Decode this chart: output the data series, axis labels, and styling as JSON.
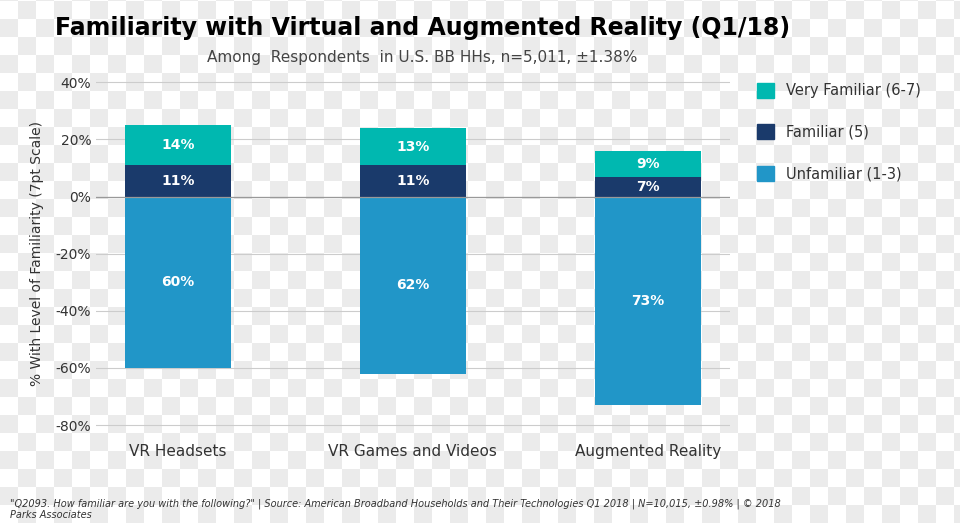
{
  "title": "Familiarity with Virtual and Augmented Reality (Q1/18)",
  "subtitle": "Among  Respondents  in U.S. BB HHs, n=5,011, ±1.38%",
  "categories": [
    "VR Headsets",
    "VR Games and Videos",
    "Augmented Reality"
  ],
  "series": [
    {
      "name": "Unfamiliar (1-3)",
      "values": [
        -60,
        -62,
        -73
      ],
      "color": "#2196C8"
    },
    {
      "name": "Familiar (5)",
      "values": [
        11,
        11,
        7
      ],
      "color": "#1A3A6B"
    },
    {
      "name": "Very Familiar (6-7)",
      "values": [
        14,
        13,
        9
      ],
      "color": "#00B8B0"
    }
  ],
  "ylabel": "% With Level of Familiarity (7pt Scale)",
  "ylim": [
    -85,
    45
  ],
  "yticks": [
    -80,
    -60,
    -40,
    -20,
    0,
    20,
    40
  ],
  "ytick_labels": [
    "-80%",
    "-60%",
    "-40%",
    "-20%",
    "0%",
    "20%",
    "40%"
  ],
  "bar_width": 0.45,
  "footnote": "\"Q2093. How familiar are you with the following?\" | Source: American Broadband Households and Their Technologies Q1 2018 | N=10,015, ±0.98% | © 2018\nParks Associates",
  "grid_color": "#CCCCCC",
  "checker_light": "#EBEBEB",
  "checker_dark": "#FFFFFF",
  "checker_size": 18,
  "label_fontsize": 10,
  "title_fontsize": 17,
  "subtitle_fontsize": 11
}
